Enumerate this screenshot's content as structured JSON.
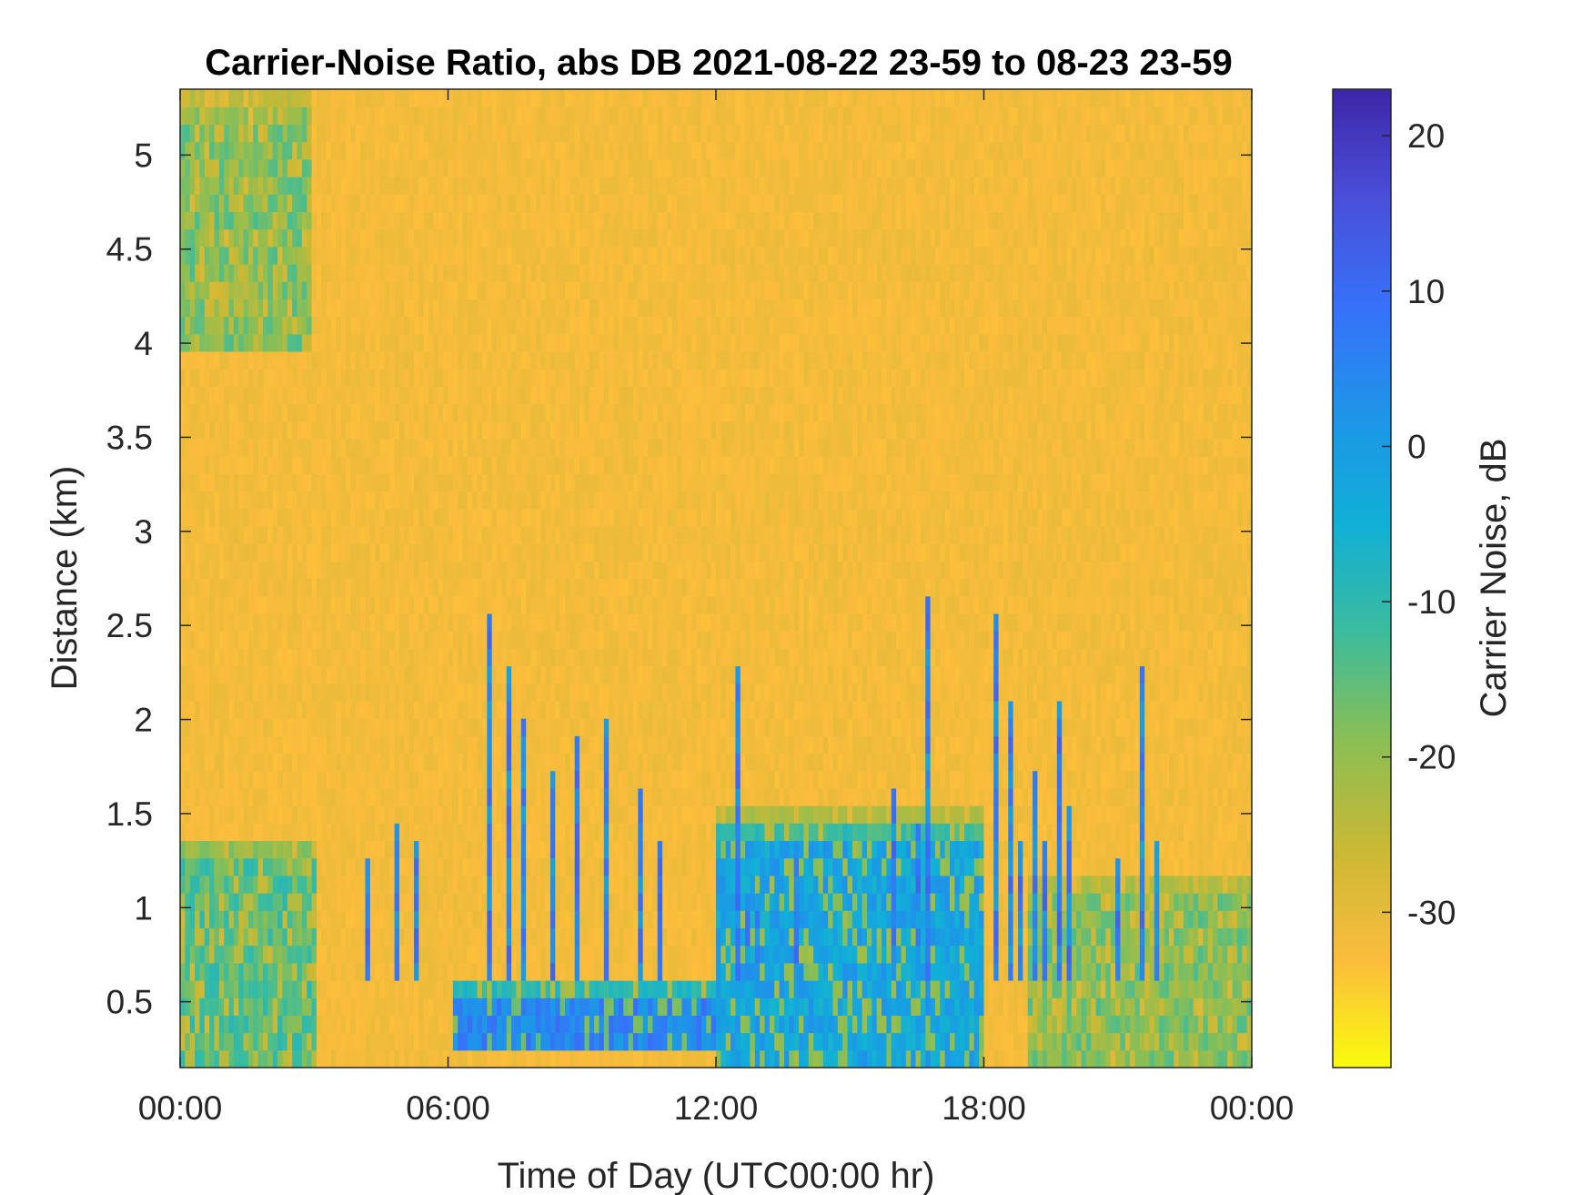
{
  "chart_data": {
    "type": "heatmap",
    "title": "Carrier-Noise Ratio, abs DB 2021-08-22 23-59 to 08-23 23-59",
    "xlabel": "Time of Day (UTC00:00 hr)",
    "ylabel": "Distance (km)",
    "colorbar_label": "Carrier Noise, dB",
    "x_ticks": [
      "00:00",
      "06:00",
      "12:00",
      "18:00",
      "00:00"
    ],
    "x_range_hours": [
      0,
      24
    ],
    "y_ticks": [
      "0.5",
      "1",
      "1.5",
      "2",
      "2.5",
      "3",
      "3.5",
      "4",
      "4.5",
      "5"
    ],
    "y_range_km": [
      0.15,
      5.35
    ],
    "colorbar_ticks": [
      "20",
      "10",
      "0",
      "-10",
      "-20",
      "-30"
    ],
    "colorbar_range_db": [
      -40,
      23
    ],
    "colormap": "parula",
    "colormap_stops": [
      "#f9fb0e",
      "#fbbc3d",
      "#cab935",
      "#8cbe53",
      "#3cbc9c",
      "#10b0d6",
      "#1e95e8",
      "#3771f9",
      "#4a4fd9",
      "#3e26a8"
    ],
    "background_level_db": -32,
    "features": [
      {
        "desc": "near-surface layer 0-3h",
        "hours": [
          0,
          3
        ],
        "km": [
          0.15,
          1.4
        ],
        "db": -14
      },
      {
        "desc": "near-surface layer 19-24h",
        "hours": [
          19,
          24
        ],
        "km": [
          0.15,
          1.2
        ],
        "db": -18
      },
      {
        "desc": "strong return band 6-12h",
        "hours": [
          6.1,
          12
        ],
        "km": [
          0.25,
          0.65
        ],
        "db": 5
      },
      {
        "desc": "strong return 12-18h",
        "hours": [
          12,
          18
        ],
        "km": [
          0.15,
          1.5
        ],
        "db": -2
      },
      {
        "desc": "upper plume 0-3h",
        "hours": [
          0,
          2.9
        ],
        "km": [
          4.0,
          5.35
        ],
        "db": -18
      }
    ]
  }
}
